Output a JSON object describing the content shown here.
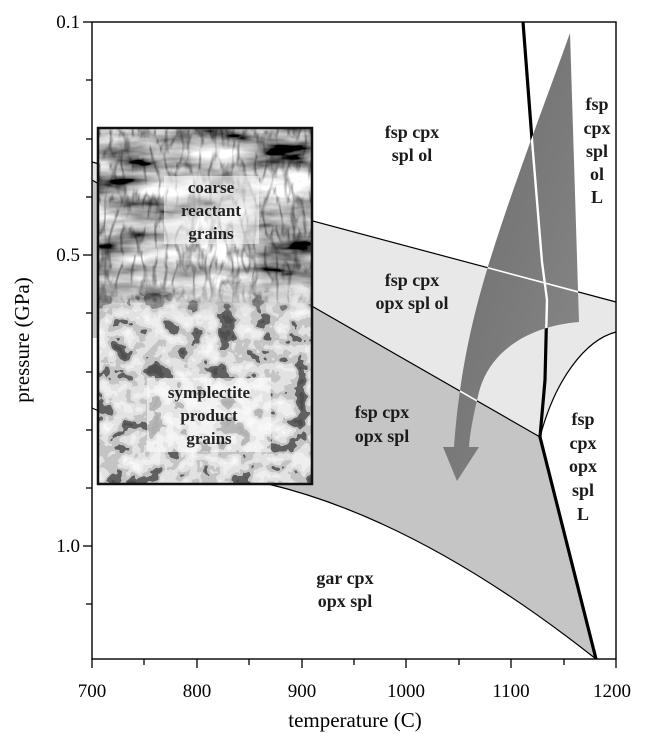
{
  "axes": {
    "x": {
      "label": "temperature (C)",
      "ticks": [
        "700",
        "800",
        "900",
        "1000",
        "1100",
        "1200"
      ],
      "range": [
        700,
        1200
      ]
    },
    "y": {
      "label": "pressure (GPa)",
      "ticks": [
        "0.1",
        "0.5",
        "1.0"
      ],
      "range": [
        0.1,
        1.2
      ],
      "inverted": true
    }
  },
  "fields": {
    "fsp_cpx_spl_ol": {
      "lines": [
        "fsp cpx",
        "spl ol"
      ]
    },
    "fsp_cpx_opx_spl_ol": {
      "lines": [
        "fsp cpx",
        "opx spl ol"
      ]
    },
    "fsp_cpx_opx_spl": {
      "lines": [
        "fsp cpx",
        "opx spl"
      ]
    },
    "gar_cpx_opx_spl": {
      "lines": [
        "gar cpx",
        "opx spl"
      ]
    },
    "fsp_cpx_spl_ol_L": {
      "lines": [
        "fsp",
        "cpx",
        "spl",
        "ol",
        "L"
      ]
    },
    "fsp_cpx_opx_spl_L": {
      "lines": [
        "fsp",
        "cpx",
        "opx",
        "spl",
        "L"
      ]
    }
  },
  "inset": {
    "reactant_label": [
      "coarse",
      "reactant",
      "grains"
    ],
    "product_label": [
      "symplectite",
      "product",
      "grains"
    ]
  },
  "colors": {
    "light_field": "#e8e8e8",
    "medium_field": "#c5c5c5",
    "arrow": "#767676",
    "boundary": "#000000"
  }
}
